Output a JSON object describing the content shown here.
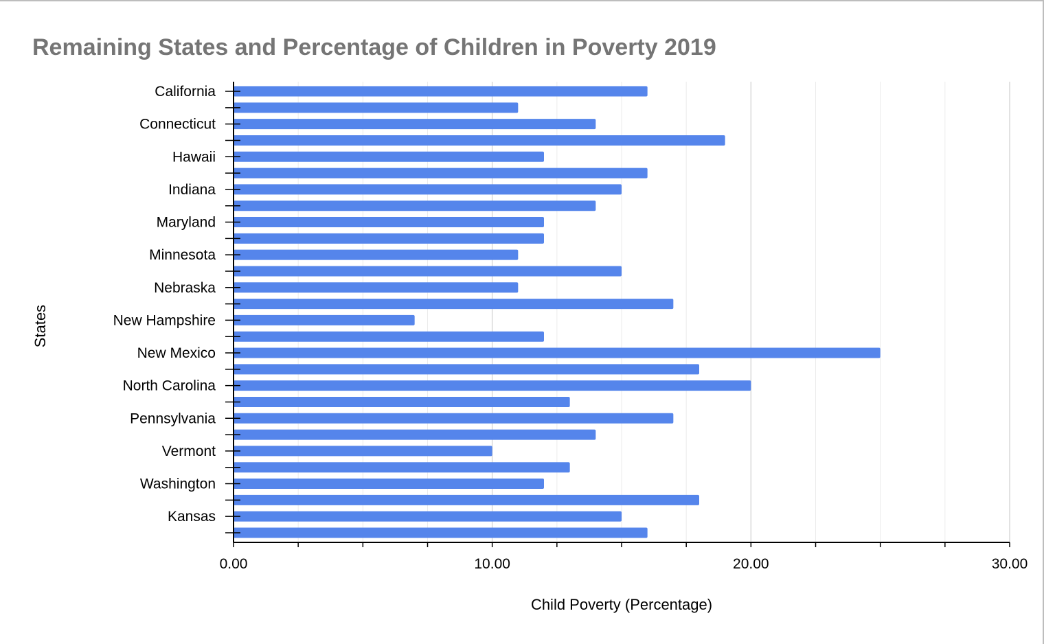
{
  "chart_data": {
    "type": "bar",
    "orientation": "horizontal",
    "title": "Remaining States and Percentage of Children in Poverty 2019",
    "xlabel": "Child Poverty (Percentage)",
    "ylabel": "States",
    "xlim": [
      0,
      30
    ],
    "x_ticks": [
      0,
      10,
      20,
      30
    ],
    "x_tick_labels": [
      "0.00",
      "10.00",
      "20.00",
      "30.00"
    ],
    "minor_gridlines_per_major": 3,
    "grid": true,
    "legend": "none",
    "colors": {
      "bar": "#5585eb",
      "grid": "#d9d9d9",
      "axis": "#000000",
      "title": "#757575"
    },
    "categories": [
      "California",
      "",
      "Connecticut",
      "",
      "Hawaii",
      "",
      "Indiana",
      "",
      "Maryland",
      "",
      "Minnesota",
      "",
      "Nebraska",
      "",
      "New Hampshire",
      "",
      "New Mexico",
      "",
      "North Carolina",
      "",
      "Pennsylvania",
      "",
      "Vermont",
      "",
      "Washington",
      "",
      "Kansas",
      ""
    ],
    "values": [
      16.0,
      11.0,
      14.0,
      19.0,
      12.0,
      16.0,
      15.0,
      14.0,
      12.0,
      12.0,
      11.0,
      15.0,
      11.0,
      17.0,
      7.0,
      12.0,
      25.0,
      18.0,
      20.0,
      13.0,
      17.0,
      14.0,
      10.0,
      13.0,
      12.0,
      18.0,
      15.0,
      16.0
    ]
  }
}
